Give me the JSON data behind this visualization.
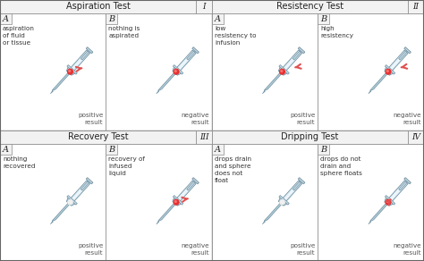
{
  "bg_color": "#ffffff",
  "border_color": "#999999",
  "title_bg": "#f0f0f0",
  "text_color": "#333333",
  "light_blue": "#c8dce8",
  "med_blue": "#a8c4d4",
  "glass": "#ddeef8",
  "dark_edge": "#7090a0",
  "needle_color": "#b0ccd8",
  "ball_positive": "#e83030",
  "ball_negative": "#e83030",
  "sections": [
    {
      "title": "Aspiration Test",
      "roman": "I",
      "col": 0,
      "row": 0,
      "subsections": [
        {
          "label": "A",
          "description": "aspiration\nof fluid\nor tissue",
          "result": "positive\nresult",
          "ball_filled": true,
          "arrow_direction": "out"
        },
        {
          "label": "B",
          "description": "nothing is\naspirated",
          "result": "negative\nresult",
          "ball_filled": true,
          "arrow_direction": "none"
        }
      ]
    },
    {
      "title": "Resistency Test",
      "roman": "II",
      "col": 1,
      "row": 0,
      "subsections": [
        {
          "label": "A",
          "description": "low\nresistency to\ninfusion",
          "result": "positive\nresult",
          "ball_filled": true,
          "arrow_direction": "in"
        },
        {
          "label": "B",
          "description": "high\nresistency",
          "result": "negative\nresult",
          "ball_filled": true,
          "arrow_direction": "in_stop"
        }
      ]
    },
    {
      "title": "Recovery Test",
      "roman": "III",
      "col": 0,
      "row": 1,
      "subsections": [
        {
          "label": "A",
          "description": "nothing\nrecovered",
          "result": "positive\nresult",
          "ball_filled": false,
          "arrow_direction": "none"
        },
        {
          "label": "B",
          "description": "recovery of\ninfused\nliquid",
          "result": "negative\nresult",
          "ball_filled": true,
          "arrow_direction": "out"
        }
      ]
    },
    {
      "title": "Dripping Test",
      "roman": "IV",
      "col": 1,
      "row": 1,
      "subsections": [
        {
          "label": "A",
          "description": "drops drain\nand sphere\ndoes not\nfloat",
          "result": "positive\nresult",
          "ball_filled": false,
          "arrow_direction": "none"
        },
        {
          "label": "B",
          "description": "drops do not\ndrain and\nsphere floats",
          "result": "negative\nresult",
          "ball_filled": true,
          "arrow_direction": "float"
        }
      ]
    }
  ]
}
